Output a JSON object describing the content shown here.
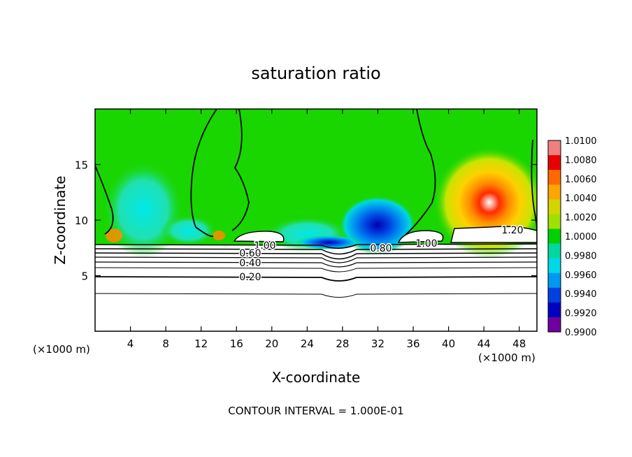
{
  "chart_data": {
    "type": "heatmap",
    "title": "saturation ratio",
    "xlabel": "X-coordinate",
    "ylabel": "Z-coordinate",
    "x_unit": "(×1000 m)",
    "y_unit": "(×1000 m)",
    "xlim": [
      0,
      50
    ],
    "ylim": [
      0,
      20
    ],
    "x_ticks": [
      "4",
      "8",
      "12",
      "16",
      "20",
      "24",
      "28",
      "32",
      "36",
      "40",
      "44",
      "48"
    ],
    "y_ticks": [
      "5",
      "10",
      "15"
    ],
    "colorbar_ticks": [
      "1.0100",
      "1.0080",
      "1.0060",
      "1.0040",
      "1.0020",
      "1.0000",
      "0.9980",
      "0.9960",
      "0.9940",
      "0.9920",
      "0.9900"
    ],
    "colorbar_colors": [
      "#f08080",
      "#e80000",
      "#ff6a00",
      "#ffa500",
      "#d4d400",
      "#a0e000",
      "#00d000",
      "#00d8a0",
      "#00d8e8",
      "#0098f0",
      "#0040e0",
      "#0000c0",
      "#7000a0"
    ],
    "contour_labels": [
      "1.00",
      "0.80",
      "1.00",
      "1.20",
      "0.60",
      "0.40",
      "0.20"
    ],
    "footer": "CONTOUR INTERVAL = 1.000E-01"
  }
}
